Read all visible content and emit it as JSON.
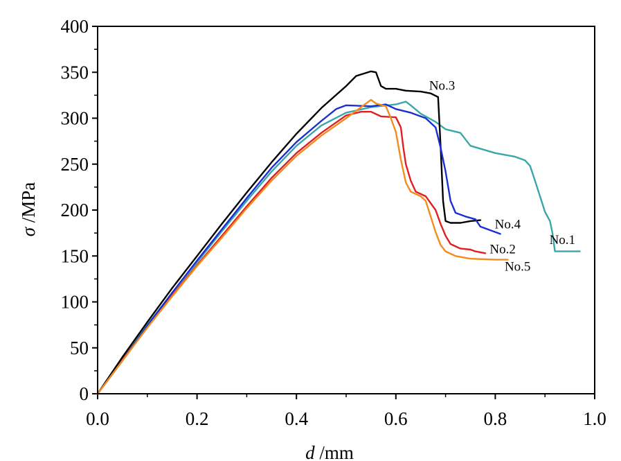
{
  "chart_data": {
    "type": "line",
    "xlabel_var": "d",
    "xlabel_unit": "/mm",
    "ylabel_var": "σ",
    "ylabel_unit": "/MPa",
    "xlim": [
      0.0,
      1.0
    ],
    "ylim": [
      0,
      400
    ],
    "xticks": [
      0.0,
      0.2,
      0.4,
      0.6,
      0.8,
      1.0
    ],
    "xtick_labels": [
      "0.0",
      "0.2",
      "0.4",
      "0.6",
      "0.8",
      "1.0"
    ],
    "yticks": [
      0,
      50,
      100,
      150,
      200,
      250,
      300,
      350,
      400
    ],
    "ytick_labels": [
      "0",
      "50",
      "100",
      "150",
      "200",
      "250",
      "300",
      "350",
      "400"
    ],
    "grid": false,
    "legend": "none",
    "series": [
      {
        "name": "No.1",
        "color": "#3aa6a8",
        "points": [
          [
            0,
            0
          ],
          [
            0.05,
            38
          ],
          [
            0.1,
            75
          ],
          [
            0.15,
            110
          ],
          [
            0.2,
            143
          ],
          [
            0.25,
            177
          ],
          [
            0.3,
            210
          ],
          [
            0.35,
            242
          ],
          [
            0.4,
            270
          ],
          [
            0.45,
            292
          ],
          [
            0.5,
            306
          ],
          [
            0.55,
            312
          ],
          [
            0.6,
            315
          ],
          [
            0.62,
            318
          ],
          [
            0.63,
            314
          ],
          [
            0.65,
            305
          ],
          [
            0.68,
            296
          ],
          [
            0.7,
            288
          ],
          [
            0.73,
            284
          ],
          [
            0.75,
            270
          ],
          [
            0.8,
            262
          ],
          [
            0.84,
            258
          ],
          [
            0.86,
            254
          ],
          [
            0.87,
            248
          ],
          [
            0.88,
            232
          ],
          [
            0.89,
            215
          ],
          [
            0.9,
            198
          ],
          [
            0.91,
            188
          ],
          [
            0.915,
            175
          ],
          [
            0.92,
            155
          ],
          [
            0.97,
            155
          ]
        ]
      },
      {
        "name": "No.2",
        "color": "#e02020",
        "points": [
          [
            0,
            0
          ],
          [
            0.05,
            37
          ],
          [
            0.1,
            73
          ],
          [
            0.15,
            107
          ],
          [
            0.2,
            140
          ],
          [
            0.25,
            172
          ],
          [
            0.3,
            204
          ],
          [
            0.35,
            235
          ],
          [
            0.4,
            262
          ],
          [
            0.45,
            284
          ],
          [
            0.5,
            303
          ],
          [
            0.53,
            307
          ],
          [
            0.55,
            307
          ],
          [
            0.57,
            302
          ],
          [
            0.6,
            301
          ],
          [
            0.61,
            290
          ],
          [
            0.615,
            268
          ],
          [
            0.62,
            250
          ],
          [
            0.63,
            232
          ],
          [
            0.64,
            220
          ],
          [
            0.66,
            215
          ],
          [
            0.68,
            200
          ],
          [
            0.69,
            185
          ],
          [
            0.7,
            172
          ],
          [
            0.71,
            163
          ],
          [
            0.73,
            158
          ],
          [
            0.75,
            157
          ],
          [
            0.76,
            155
          ],
          [
            0.78,
            153
          ]
        ]
      },
      {
        "name": "No.3",
        "color": "#000000",
        "points": [
          [
            0,
            0
          ],
          [
            0.05,
            40
          ],
          [
            0.1,
            78
          ],
          [
            0.15,
            115
          ],
          [
            0.2,
            150
          ],
          [
            0.25,
            185
          ],
          [
            0.3,
            219
          ],
          [
            0.35,
            252
          ],
          [
            0.4,
            283
          ],
          [
            0.45,
            311
          ],
          [
            0.5,
            335
          ],
          [
            0.52,
            346
          ],
          [
            0.55,
            351
          ],
          [
            0.56,
            350
          ],
          [
            0.57,
            335
          ],
          [
            0.58,
            332
          ],
          [
            0.6,
            332
          ],
          [
            0.62,
            330
          ],
          [
            0.65,
            329
          ],
          [
            0.67,
            327
          ],
          [
            0.685,
            323
          ],
          [
            0.69,
            270
          ],
          [
            0.695,
            210
          ],
          [
            0.7,
            188
          ],
          [
            0.71,
            186
          ],
          [
            0.73,
            186
          ],
          [
            0.75,
            188
          ],
          [
            0.77,
            189
          ]
        ]
      },
      {
        "name": "No.4",
        "color": "#1a2fd0",
        "points": [
          [
            0,
            0
          ],
          [
            0.05,
            36
          ],
          [
            0.1,
            74
          ],
          [
            0.15,
            110
          ],
          [
            0.2,
            145
          ],
          [
            0.25,
            179
          ],
          [
            0.3,
            213
          ],
          [
            0.35,
            246
          ],
          [
            0.4,
            274
          ],
          [
            0.45,
            297
          ],
          [
            0.48,
            310
          ],
          [
            0.5,
            314
          ],
          [
            0.55,
            313
          ],
          [
            0.58,
            315
          ],
          [
            0.6,
            310
          ],
          [
            0.63,
            306
          ],
          [
            0.66,
            300
          ],
          [
            0.68,
            290
          ],
          [
            0.69,
            268
          ],
          [
            0.7,
            242
          ],
          [
            0.71,
            210
          ],
          [
            0.72,
            197
          ],
          [
            0.74,
            193
          ],
          [
            0.76,
            190
          ],
          [
            0.77,
            182
          ],
          [
            0.79,
            178
          ],
          [
            0.81,
            174
          ]
        ]
      },
      {
        "name": "No.5",
        "color": "#f28c1e",
        "points": [
          [
            0,
            0
          ],
          [
            0.05,
            36
          ],
          [
            0.1,
            72
          ],
          [
            0.15,
            106
          ],
          [
            0.2,
            139
          ],
          [
            0.25,
            170
          ],
          [
            0.3,
            202
          ],
          [
            0.35,
            232
          ],
          [
            0.4,
            259
          ],
          [
            0.45,
            281
          ],
          [
            0.5,
            300
          ],
          [
            0.53,
            312
          ],
          [
            0.55,
            320
          ],
          [
            0.56,
            316
          ],
          [
            0.58,
            313
          ],
          [
            0.59,
            300
          ],
          [
            0.6,
            285
          ],
          [
            0.61,
            255
          ],
          [
            0.62,
            230
          ],
          [
            0.63,
            220
          ],
          [
            0.65,
            215
          ],
          [
            0.66,
            210
          ],
          [
            0.67,
            193
          ],
          [
            0.68,
            176
          ],
          [
            0.69,
            162
          ],
          [
            0.7,
            155
          ],
          [
            0.72,
            150
          ],
          [
            0.75,
            147
          ],
          [
            0.8,
            146
          ],
          [
            0.825,
            146
          ]
        ]
      }
    ]
  }
}
